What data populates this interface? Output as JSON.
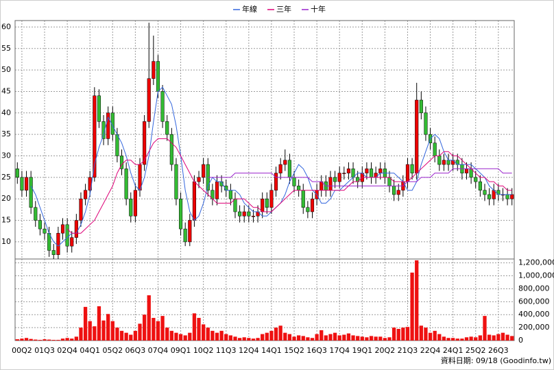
{
  "chart_data": {
    "type": "candlestick",
    "categories": [
      null,
      "00Q2",
      null,
      null,
      null,
      null,
      "01Q3",
      null,
      null,
      null,
      null,
      "02Q4",
      null,
      null,
      null,
      null,
      "04Q1",
      null,
      null,
      null,
      null,
      "05Q2",
      null,
      null,
      null,
      null,
      "06Q3",
      null,
      null,
      null,
      null,
      "07Q4",
      null,
      null,
      null,
      null,
      "09Q1",
      null,
      null,
      null,
      null,
      "10Q2",
      null,
      null,
      null,
      null,
      "11Q3",
      null,
      null,
      null,
      null,
      "12Q4",
      null,
      null,
      null,
      null,
      "14Q1",
      null,
      null,
      null,
      null,
      "15Q2",
      null,
      null,
      null,
      null,
      "16Q3",
      null,
      null,
      null,
      null,
      "17Q4",
      null,
      null,
      null,
      null,
      "19Q1",
      null,
      null,
      null,
      null,
      "20Q2",
      null,
      null,
      null,
      null,
      "21Q3",
      null,
      null,
      null,
      null,
      "22Q4",
      null,
      null,
      null,
      null,
      "24Q1",
      null,
      null,
      null,
      null,
      "25Q2",
      null,
      null,
      null,
      null,
      "26Q3",
      null,
      null,
      null
    ],
    "open": [
      27,
      25,
      22,
      25,
      18,
      15,
      13,
      12,
      8,
      7,
      12,
      14,
      9,
      11,
      15,
      20,
      22,
      25,
      44,
      38,
      34,
      40,
      35,
      30,
      27,
      20,
      16,
      22,
      28,
      38,
      48,
      52,
      45,
      38,
      35,
      28,
      20,
      13,
      10,
      15,
      24,
      25,
      28,
      22,
      20,
      24,
      23,
      22,
      20,
      17,
      16,
      17,
      16,
      16,
      17,
      20,
      18,
      22,
      26,
      28,
      29,
      25,
      23,
      22,
      18,
      17,
      20,
      22,
      24,
      22,
      25,
      24,
      26,
      26,
      27,
      25,
      24,
      26,
      27,
      25,
      26,
      27,
      25,
      23,
      21,
      22,
      24,
      28,
      26,
      43,
      40,
      35,
      33,
      30,
      28,
      29,
      28,
      29,
      28,
      26,
      27,
      25,
      24,
      22,
      21,
      20,
      22,
      21,
      21,
      20
    ],
    "high": [
      28.5,
      26.5,
      26.5,
      26.5,
      19.5,
      16.5,
      14.5,
      13.5,
      9.5,
      13.5,
      15.5,
      15.5,
      12.5,
      16.5,
      21.5,
      23.5,
      26.5,
      46,
      45.5,
      39.5,
      41.5,
      41.5,
      36.5,
      31.5,
      28.5,
      21.5,
      23.5,
      29.5,
      39.5,
      61,
      58,
      53.5,
      46.5,
      39.5,
      36.5,
      29.5,
      21.5,
      14.5,
      16.5,
      25.5,
      26.5,
      29.5,
      29.5,
      23.5,
      25.5,
      25.5,
      24.5,
      23.5,
      21.5,
      18.5,
      18.5,
      18.5,
      17.5,
      18.5,
      21.5,
      21.5,
      23.5,
      27.5,
      29.5,
      31.5,
      30.5,
      26.5,
      24.5,
      23.5,
      19.5,
      21.5,
      23.5,
      25.5,
      25.5,
      26.5,
      26.5,
      27.5,
      27.5,
      28.5,
      28.5,
      26.5,
      27.5,
      28.5,
      28.5,
      27.5,
      28.5,
      28.5,
      26.5,
      24.5,
      23.5,
      25.5,
      29.5,
      29.5,
      47,
      45,
      41.5,
      36.5,
      34.5,
      31.5,
      30.5,
      30.5,
      30.5,
      30.5,
      29.5,
      28.5,
      28.5,
      26.5,
      25.5,
      23.5,
      22.5,
      23.5,
      23.5,
      22.5,
      22.5,
      22.5
    ],
    "low": [
      23.5,
      20.5,
      20.5,
      16.5,
      13.5,
      11.5,
      10.5,
      6.5,
      6,
      6,
      10.5,
      7.5,
      7.5,
      9.5,
      13.5,
      18.5,
      20.5,
      24,
      36.5,
      32.5,
      32.5,
      33.5,
      28.5,
      25.5,
      18.5,
      14.5,
      14.5,
      20.5,
      26.5,
      36.5,
      46.5,
      43.5,
      36.5,
      33.5,
      26.5,
      18.5,
      11.5,
      9,
      9,
      13.5,
      22.5,
      23.5,
      20.5,
      18.5,
      18.5,
      21.5,
      20.5,
      18.5,
      15.5,
      14.5,
      14.5,
      14.5,
      14.5,
      14.5,
      15.5,
      16.5,
      16.5,
      20.5,
      24.5,
      26.5,
      23.5,
      21.5,
      20.5,
      16.5,
      15.5,
      15.5,
      18.5,
      20.5,
      20.5,
      20.5,
      22.5,
      22.5,
      24.5,
      24.5,
      23.5,
      22.5,
      22.5,
      24.5,
      23.5,
      23.5,
      24.5,
      23.5,
      21.5,
      19.5,
      19.5,
      20.5,
      22.5,
      24.5,
      24.5,
      38.5,
      33.5,
      31.5,
      28.5,
      26.5,
      26.5,
      26.5,
      26.5,
      26.5,
      24.5,
      24.5,
      23.5,
      22.5,
      20.5,
      19.5,
      18.5,
      18.5,
      19.5,
      19.5,
      18.5,
      18.5
    ],
    "close": [
      25,
      22,
      25,
      18,
      15,
      13,
      12,
      8,
      7,
      12,
      14,
      9,
      11,
      15,
      20,
      22,
      25,
      44,
      38,
      34,
      40,
      35,
      30,
      27,
      20,
      16,
      22,
      28,
      38,
      48,
      52,
      45,
      38,
      35,
      28,
      20,
      13,
      10,
      15,
      24,
      25,
      28,
      22,
      20,
      24,
      23,
      22,
      20,
      17,
      16,
      17,
      16,
      16,
      17,
      20,
      18,
      22,
      26,
      28,
      29,
      25,
      23,
      22,
      18,
      17,
      20,
      22,
      24,
      22,
      25,
      24,
      26,
      26,
      27,
      25,
      24,
      26,
      27,
      25,
      26,
      27,
      25,
      23,
      21,
      22,
      24,
      28,
      26,
      43,
      40,
      35,
      33,
      30,
      28,
      29,
      28,
      29,
      28,
      26,
      27,
      25,
      24,
      22,
      21,
      20,
      22,
      21,
      21,
      20,
      21
    ],
    "up_color": "#ee0000",
    "down_color": "#33bb33",
    "series": [
      {
        "name": "年線",
        "color": "#3366dd",
        "values": [
          null,
          null,
          null,
          23,
          21,
          18,
          15,
          12,
          10,
          9,
          10,
          11,
          12,
          12,
          14,
          17,
          21,
          28,
          32,
          35,
          39,
          37,
          35,
          33,
          30,
          26,
          23,
          22,
          25,
          30,
          38,
          45,
          46,
          44,
          42,
          37,
          30,
          22,
          17,
          15,
          16,
          19,
          23,
          25,
          24,
          24,
          22,
          22,
          22,
          21,
          19,
          18,
          17,
          17,
          16,
          16,
          17,
          18,
          19,
          21,
          24,
          26,
          28,
          27,
          25,
          22,
          21,
          19,
          19,
          20,
          22,
          22,
          23,
          24,
          25,
          26,
          26,
          25,
          25,
          25,
          26,
          26,
          26,
          26,
          25,
          24,
          22,
          22,
          24,
          28,
          31,
          34,
          35,
          34,
          31,
          29,
          29,
          28,
          28,
          28,
          28,
          27,
          26,
          25,
          23,
          22,
          21,
          21,
          21,
          21
        ]
      },
      {
        "name": "三年",
        "color": "#dd0077",
        "values": [
          null,
          null,
          null,
          null,
          null,
          null,
          null,
          null,
          null,
          null,
          null,
          13,
          12,
          12,
          12,
          13,
          14,
          15,
          17,
          19,
          21,
          23,
          26,
          28,
          29,
          29,
          28,
          28,
          29,
          31,
          33,
          34,
          34,
          34,
          33,
          32,
          30,
          28,
          26,
          24,
          23,
          22,
          21,
          20,
          19,
          19,
          19,
          19,
          20,
          20,
          20,
          19,
          18,
          18,
          17,
          17,
          17,
          18,
          19,
          20,
          21,
          22,
          22,
          22,
          22,
          22,
          22,
          22,
          22,
          22,
          22,
          22,
          22,
          23,
          24,
          24,
          25,
          25,
          25,
          25,
          25,
          25,
          25,
          24,
          24,
          24,
          24,
          25,
          26,
          27,
          28,
          29,
          30,
          30,
          31,
          31,
          30,
          30,
          29,
          28,
          27,
          26,
          25,
          25,
          24,
          24,
          23,
          23,
          22,
          22
        ]
      },
      {
        "name": "十年",
        "color": "#9922cc",
        "values": [
          null,
          null,
          null,
          null,
          null,
          null,
          null,
          null,
          null,
          null,
          null,
          null,
          null,
          null,
          null,
          null,
          null,
          null,
          null,
          null,
          null,
          null,
          null,
          null,
          null,
          null,
          null,
          null,
          null,
          null,
          null,
          null,
          null,
          null,
          null,
          null,
          null,
          null,
          null,
          null,
          null,
          null,
          25,
          25,
          25,
          25,
          25,
          25,
          26,
          26,
          26,
          26,
          26,
          26,
          26,
          26,
          26,
          25,
          25,
          25,
          25,
          25,
          25,
          25,
          25,
          24,
          24,
          24,
          23,
          23,
          23,
          23,
          23,
          23,
          23,
          23,
          23,
          23,
          23,
          23,
          23,
          23,
          23,
          23,
          23,
          23,
          24,
          24,
          24,
          25,
          25,
          25,
          26,
          26,
          26,
          26,
          27,
          27,
          27,
          27,
          27,
          27,
          27,
          27,
          27,
          27,
          27,
          26,
          26,
          26
        ]
      }
    ],
    "ylim": [
      6,
      61.5
    ],
    "yticks": [
      10,
      15,
      20,
      25,
      30,
      35,
      40,
      45,
      50,
      55,
      60
    ],
    "grid": true,
    "volume": {
      "type": "bar",
      "color": "#ee1111",
      "values": [
        20000,
        30000,
        40000,
        25000,
        15000,
        10000,
        20000,
        15000,
        10000,
        10000,
        30000,
        40000,
        30000,
        60000,
        200000,
        520000,
        300000,
        220000,
        530000,
        310000,
        410000,
        300000,
        200000,
        150000,
        120000,
        90000,
        150000,
        260000,
        400000,
        700000,
        350000,
        300000,
        380000,
        200000,
        150000,
        120000,
        100000,
        80000,
        120000,
        420000,
        350000,
        250000,
        200000,
        150000,
        120000,
        150000,
        100000,
        80000,
        60000,
        40000,
        50000,
        40000,
        30000,
        40000,
        100000,
        120000,
        150000,
        200000,
        230000,
        120000,
        100000,
        60000,
        80000,
        70000,
        50000,
        40000,
        100000,
        160000,
        80000,
        100000,
        120000,
        80000,
        90000,
        110000,
        80000,
        70000,
        60000,
        50000,
        70000,
        60000,
        60000,
        40000,
        50000,
        200000,
        180000,
        200000,
        210000,
        1050000,
        1240000,
        230000,
        200000,
        120000,
        150000,
        100000,
        60000,
        40000,
        40000,
        30000,
        30000,
        50000,
        60000,
        50000,
        80000,
        380000,
        90000,
        80000,
        100000,
        120000,
        90000,
        70000
      ],
      "ylim": [
        0,
        1260000
      ],
      "yticks": [
        0,
        {
          "value": 200000,
          "label": "200,000"
        },
        {
          "value": 400000,
          "label": "400,000"
        },
        {
          "value": 600000,
          "label": "600,000"
        },
        {
          "value": 800000,
          "label": "800,000"
        },
        {
          "value": 1000000,
          "label": "1,000,000"
        },
        {
          "value": 1200000,
          "label": "1,200,000"
        }
      ]
    },
    "note": "資料日期: 09/18  (Goodinfo.tw)"
  }
}
